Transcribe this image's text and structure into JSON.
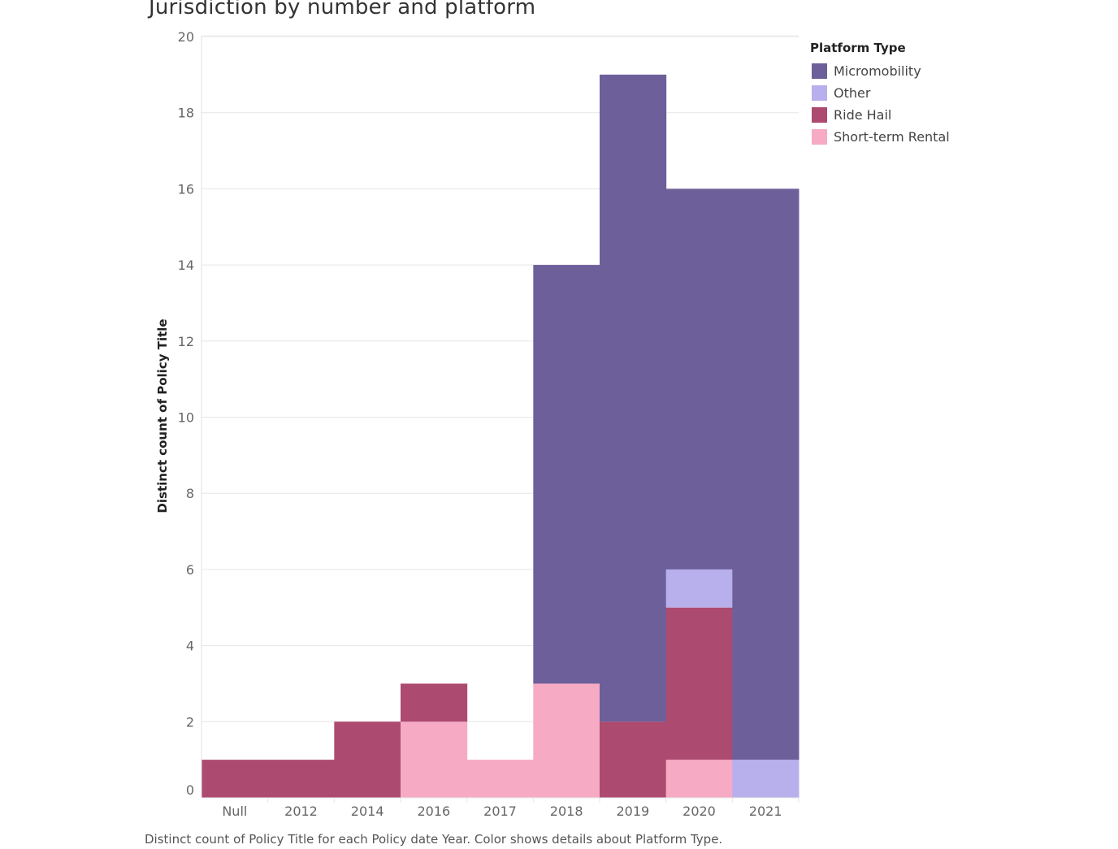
{
  "chart_data": {
    "type": "bar",
    "stacked": true,
    "title": "Jurisdiction by number and platform",
    "xlabel": "",
    "ylabel": "Distinct count of Policy Title",
    "caption": "Distinct count of Policy Title for each Policy date Year.  Color shows details about Platform Type.",
    "categories": [
      "Null",
      "2012",
      "2014",
      "2016",
      "2017",
      "2018",
      "2019",
      "2020",
      "2021"
    ],
    "ylim": [
      0,
      20
    ],
    "yticks": [
      0,
      2,
      4,
      6,
      8,
      10,
      12,
      14,
      16,
      18,
      20
    ],
    "grid": true,
    "legend": {
      "title": "Platform Type",
      "placement": "top-right"
    },
    "series": [
      {
        "name": "Short-term Rental",
        "color": "#f6aac4",
        "values": [
          0,
          0,
          0,
          2,
          1,
          3,
          0,
          1,
          0
        ]
      },
      {
        "name": "Ride Hail",
        "color": "#ad4a70",
        "values": [
          1,
          1,
          2,
          1,
          0,
          0,
          2,
          4,
          0
        ]
      },
      {
        "name": "Other",
        "color": "#b8b0ec",
        "values": [
          0,
          0,
          0,
          0,
          0,
          0,
          0,
          1,
          1
        ]
      },
      {
        "name": "Micromobility",
        "color": "#6d5f9a",
        "values": [
          0,
          0,
          0,
          0,
          0,
          11,
          17,
          10,
          15
        ]
      }
    ],
    "legend_order": [
      "Micromobility",
      "Other",
      "Ride Hail",
      "Short-term Rental"
    ]
  }
}
